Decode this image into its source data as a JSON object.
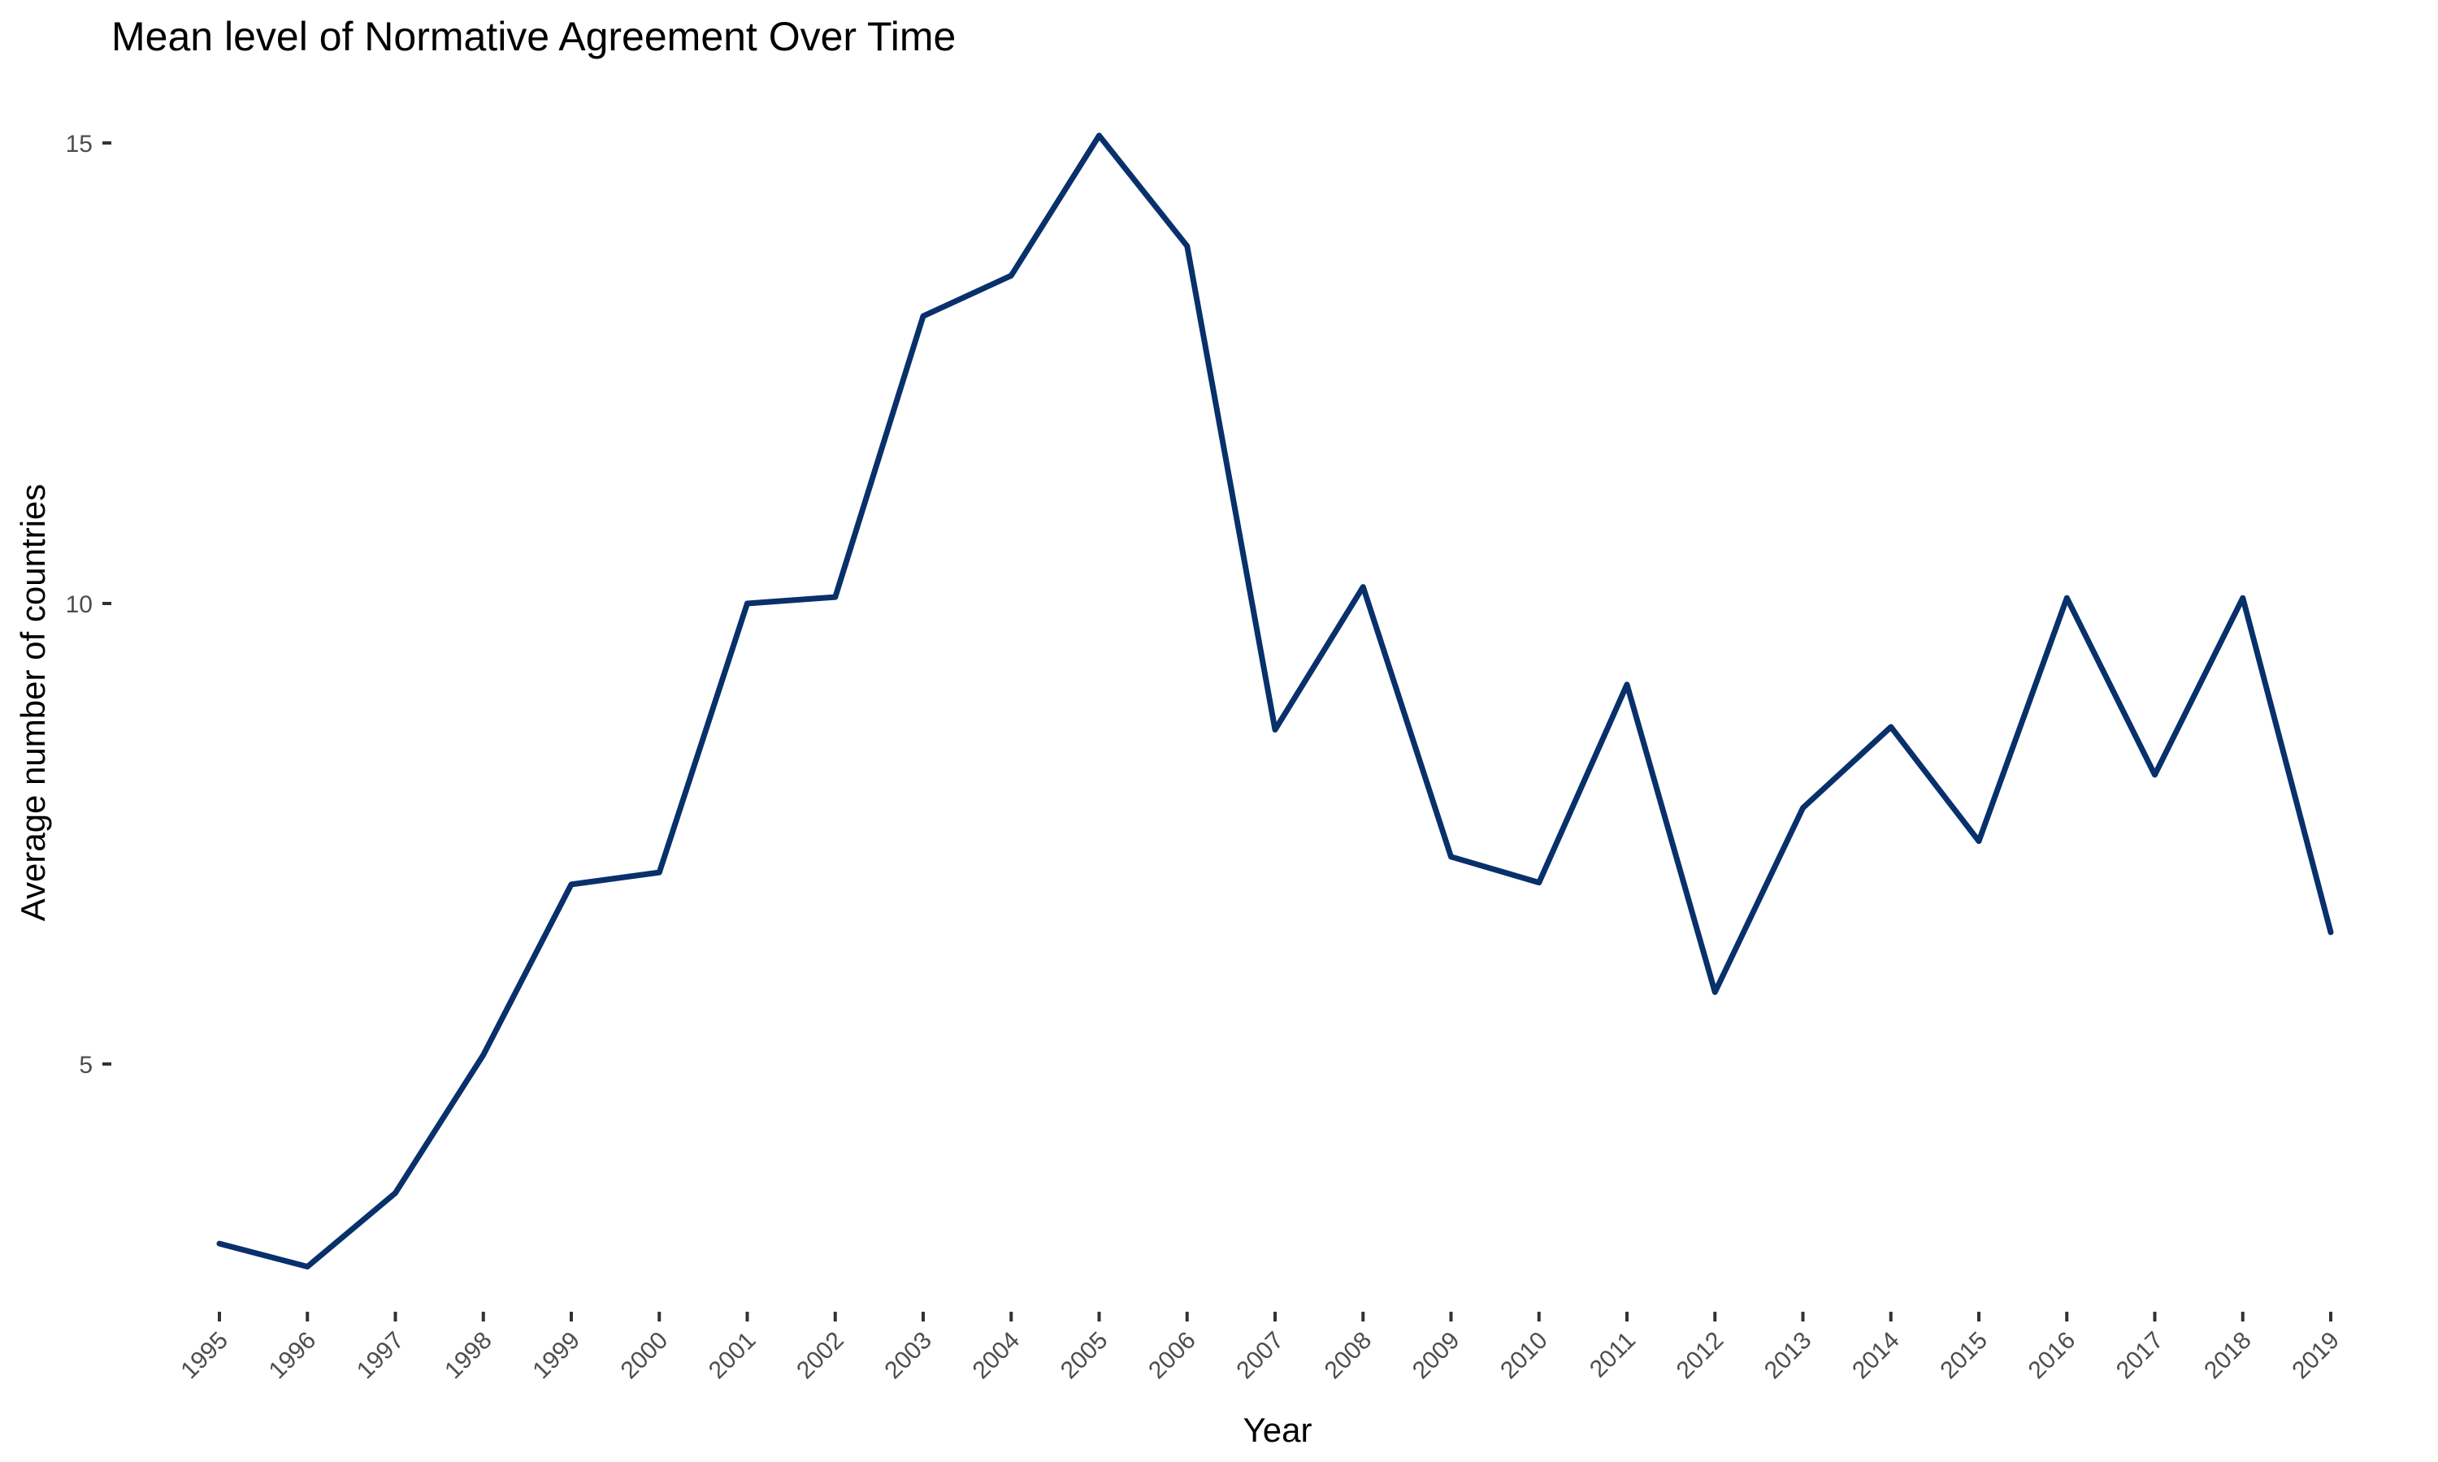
{
  "chart_data": {
    "type": "line",
    "title": "Mean level of Normative Agreement Over Time",
    "xlabel": "Year",
    "ylabel": "Average number of countries",
    "x": [
      "1995",
      "1996",
      "1997",
      "1998",
      "1999",
      "2000",
      "2001",
      "2002",
      "2003",
      "2004",
      "2005",
      "2006",
      "2007",
      "2008",
      "2009",
      "2010",
      "2011",
      "2012",
      "2013",
      "2014",
      "2015",
      "2016",
      "2017",
      "2018",
      "2019"
    ],
    "series": [
      {
        "values": [
          3.05,
          2.8,
          3.6,
          5.1,
          6.95,
          7.08,
          10.0,
          10.07,
          13.12,
          13.56,
          15.08,
          13.88,
          8.63,
          10.18,
          7.25,
          6.97,
          9.12,
          5.78,
          7.78,
          8.66,
          7.42,
          10.06,
          8.14,
          10.06,
          6.43
        ]
      }
    ],
    "ylim": [
      2.5,
      15.5
    ],
    "yticks": [
      5,
      10,
      15
    ],
    "grid": false,
    "legend": "none",
    "colors": {
      "line": "#08306b"
    }
  }
}
